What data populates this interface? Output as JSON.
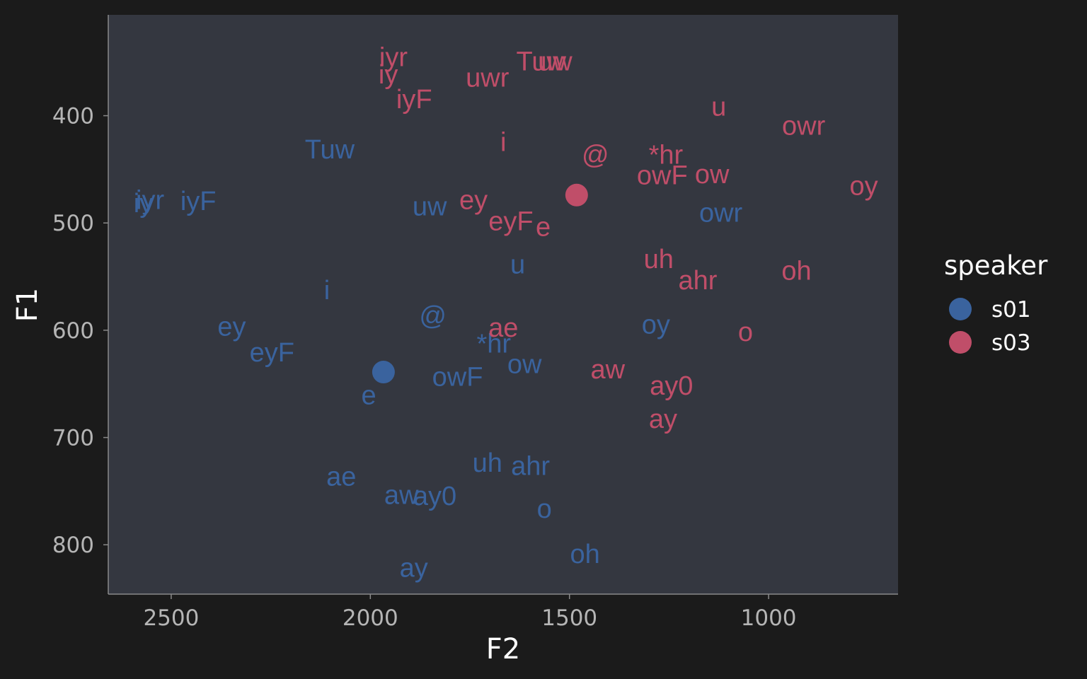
{
  "chart_data": {
    "type": "scatter",
    "xlabel": "F2",
    "ylabel": "F1",
    "x_reversed": true,
    "y_reversed": true,
    "xlim": [
      2658,
      675
    ],
    "ylim": [
      306,
      846
    ],
    "x_ticks": [
      2500,
      2000,
      1500,
      1000
    ],
    "y_ticks": [
      400,
      500,
      600,
      700,
      800
    ],
    "grid": false,
    "legend": {
      "title": "speaker",
      "position": "right"
    },
    "colors": {
      "s01": "#3a639e",
      "s03": "#c04e69"
    },
    "series": [
      {
        "name": "s01",
        "color": "#3a639e",
        "mean": {
          "x": 1967,
          "y": 639
        },
        "points": [
          {
            "label": "iy",
            "x": 2570,
            "y": 482
          },
          {
            "label": "iyr",
            "x": 2553,
            "y": 479
          },
          {
            "label": "iyF",
            "x": 2432,
            "y": 480
          },
          {
            "label": "Tuw",
            "x": 2102,
            "y": 432
          },
          {
            "label": "uw",
            "x": 1851,
            "y": 485
          },
          {
            "label": "i",
            "x": 2109,
            "y": 563
          },
          {
            "label": "ey",
            "x": 2348,
            "y": 597
          },
          {
            "label": "eyF",
            "x": 2247,
            "y": 621
          },
          {
            "label": "@",
            "x": 1843,
            "y": 587
          },
          {
            "label": "e",
            "x": 2004,
            "y": 661
          },
          {
            "label": "owF",
            "x": 1781,
            "y": 644
          },
          {
            "label": "*hr",
            "x": 1690,
            "y": 613
          },
          {
            "label": "ow",
            "x": 1613,
            "y": 632
          },
          {
            "label": "u",
            "x": 1630,
            "y": 539
          },
          {
            "label": "owr",
            "x": 1120,
            "y": 491
          },
          {
            "label": "oy",
            "x": 1283,
            "y": 595
          },
          {
            "label": "ae",
            "x": 2073,
            "y": 737
          },
          {
            "label": "aw",
            "x": 1922,
            "y": 754
          },
          {
            "label": "ay0",
            "x": 1838,
            "y": 755
          },
          {
            "label": "uh",
            "x": 1706,
            "y": 724
          },
          {
            "label": "ahr",
            "x": 1598,
            "y": 727
          },
          {
            "label": "o",
            "x": 1563,
            "y": 767
          },
          {
            "label": "oh",
            "x": 1461,
            "y": 809
          },
          {
            "label": "ay",
            "x": 1891,
            "y": 822
          }
        ]
      },
      {
        "name": "s03",
        "color": "#c04e69",
        "mean": {
          "x": 1482,
          "y": 474
        },
        "points": [
          {
            "label": "iyr",
            "x": 1942,
            "y": 346
          },
          {
            "label": "iy",
            "x": 1955,
            "y": 362
          },
          {
            "label": "iyF",
            "x": 1890,
            "y": 385
          },
          {
            "label": "Tuw",
            "x": 1571,
            "y": 350
          },
          {
            "label": "uw",
            "x": 1536,
            "y": 350
          },
          {
            "label": "uwr",
            "x": 1706,
            "y": 365
          },
          {
            "label": "i",
            "x": 1666,
            "y": 425
          },
          {
            "label": "@",
            "x": 1435,
            "y": 437
          },
          {
            "label": "*hr",
            "x": 1258,
            "y": 437
          },
          {
            "label": "owF",
            "x": 1267,
            "y": 456
          },
          {
            "label": "ow",
            "x": 1142,
            "y": 455
          },
          {
            "label": "u",
            "x": 1125,
            "y": 392
          },
          {
            "label": "owr",
            "x": 912,
            "y": 410
          },
          {
            "label": "oy",
            "x": 761,
            "y": 466
          },
          {
            "label": "ey",
            "x": 1741,
            "y": 479
          },
          {
            "label": "eyF",
            "x": 1647,
            "y": 499
          },
          {
            "label": "e",
            "x": 1566,
            "y": 504
          },
          {
            "label": "uh",
            "x": 1276,
            "y": 534
          },
          {
            "label": "ahr",
            "x": 1178,
            "y": 554
          },
          {
            "label": "oh",
            "x": 930,
            "y": 545
          },
          {
            "label": "ae",
            "x": 1666,
            "y": 598
          },
          {
            "label": "o",
            "x": 1058,
            "y": 602
          },
          {
            "label": "aw",
            "x": 1404,
            "y": 637
          },
          {
            "label": "ay0",
            "x": 1244,
            "y": 652
          },
          {
            "label": "ay",
            "x": 1265,
            "y": 683
          }
        ]
      }
    ]
  }
}
